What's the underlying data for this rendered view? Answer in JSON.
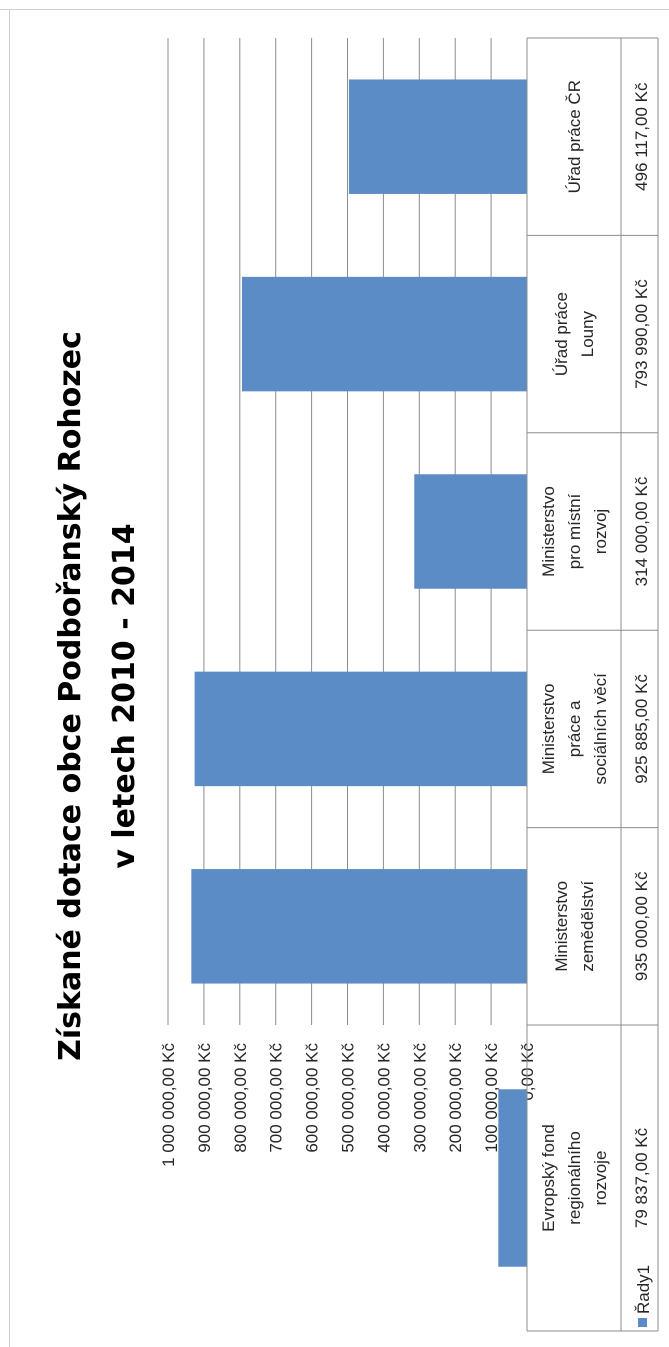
{
  "chart_data": {
    "type": "bar",
    "title_lines": [
      "Získané dotace obce Podbořanský Rohozec",
      "v letech 2010 - 2014"
    ],
    "categories": [
      [
        "Evropský fond",
        "regionálního",
        "rozvoje"
      ],
      [
        "Ministerstvo",
        "zemědělství"
      ],
      [
        "Ministerstvo",
        "práce a",
        "sociálních věcí"
      ],
      [
        "Ministerstvo",
        "pro místní",
        "rozvoj"
      ],
      [
        "Úřad práce",
        "Louny"
      ],
      [
        "Úřad práce ČR"
      ]
    ],
    "series": [
      {
        "name": "Řady1",
        "values": [
          79837,
          935000,
          925885,
          314000,
          793990,
          496117
        ],
        "value_labels": [
          "79 837,00 Kč",
          "935 000,00 Kč",
          "925 885,00 Kč",
          "314 000,00 Kč",
          "793 990,00 Kč",
          "496 117,00 Kč"
        ]
      }
    ],
    "y_ticks": [
      "0,00 Kč",
      "100 000,00 Kč",
      "200 000,00 Kč",
      "300 000,00 Kč",
      "400 000,00 Kč",
      "500 000,00 Kč",
      "600 000,00 Kč",
      "700 000,00 Kč",
      "800 000,00 Kč",
      "900 000,00 Kč",
      "1 000 000,00 Kč"
    ],
    "ylim": [
      0,
      1000000
    ],
    "grid": true,
    "data_table": true,
    "orientation": "rotated 90° counter-clockwise",
    "colors": {
      "bar": "#5b8cc6",
      "grid": "#8c8c8c",
      "table_border": "#8c8c8c",
      "text": "#262626"
    }
  }
}
